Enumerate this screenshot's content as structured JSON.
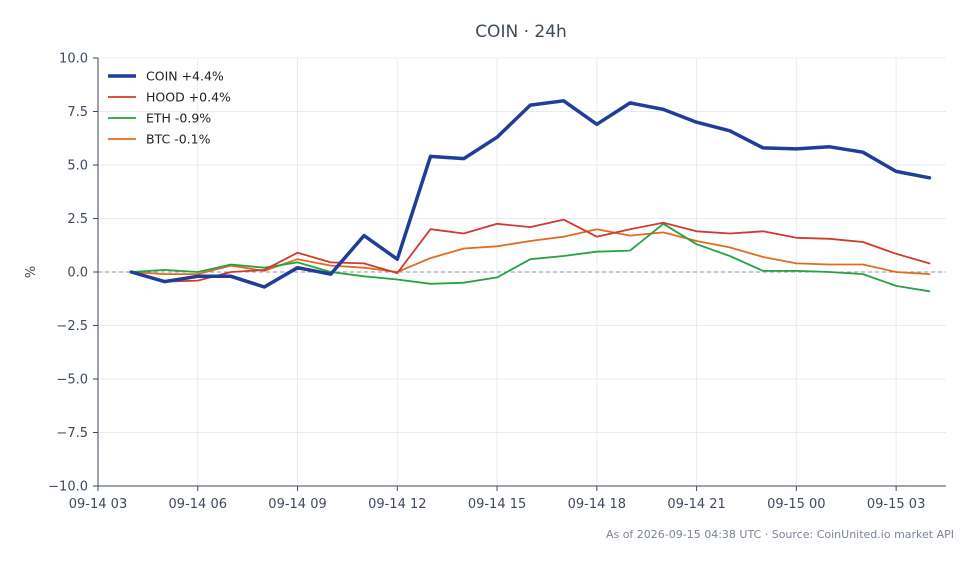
{
  "chart_data": {
    "type": "line",
    "title": "COIN · 24h",
    "xlabel": "",
    "ylabel": "%",
    "ylim": [
      -10,
      10
    ],
    "yticks": [
      10.0,
      7.5,
      5.0,
      2.5,
      0.0,
      -2.5,
      -5.0,
      -7.5,
      -10.0
    ],
    "ytick_labels": [
      "10.0",
      "7.5",
      "5.0",
      "2.5",
      "0.0",
      "−2.5",
      "−5.0",
      "−7.5",
      "−10.0"
    ],
    "xlim_hours": [
      0,
      25.5
    ],
    "xticks": [
      {
        "label": "09-14 03",
        "hour": 0
      },
      {
        "label": "09-14 06",
        "hour": 3
      },
      {
        "label": "09-14 09",
        "hour": 6
      },
      {
        "label": "09-14 12",
        "hour": 9
      },
      {
        "label": "09-14 15",
        "hour": 12
      },
      {
        "label": "09-14 18",
        "hour": 15
      },
      {
        "label": "09-14 21",
        "hour": 18
      },
      {
        "label": "09-15 00",
        "hour": 21
      },
      {
        "label": "09-15 03",
        "hour": 24
      }
    ],
    "x": [
      "09-14 04",
      "09-14 05",
      "09-14 06",
      "09-14 07",
      "09-14 08",
      "09-14 09",
      "09-14 10",
      "09-14 11",
      "09-14 12",
      "09-14 13",
      "09-14 14",
      "09-14 15",
      "09-14 16",
      "09-14 17",
      "09-14 18",
      "09-14 19",
      "09-14 20",
      "09-14 21",
      "09-14 22",
      "09-14 23",
      "09-15 00",
      "09-15 01",
      "09-15 02",
      "09-15 03",
      "09-15 04"
    ],
    "x_hours": [
      1,
      2,
      3,
      4,
      5,
      6,
      7,
      8,
      9,
      10,
      11,
      12,
      13,
      14,
      15,
      16,
      17,
      18,
      19,
      20,
      21,
      22,
      23,
      24,
      25
    ],
    "zero_line": true,
    "grid": true,
    "legend_position": "top-left",
    "series": [
      {
        "name": "COIN +4.4%",
        "color": "#1f3d99",
        "width": 3.5,
        "values": [
          0.0,
          -0.45,
          -0.2,
          -0.2,
          -0.7,
          0.2,
          -0.1,
          1.7,
          0.6,
          5.4,
          5.3,
          6.3,
          7.8,
          8.0,
          6.9,
          7.9,
          7.6,
          7.0,
          6.6,
          5.8,
          5.75,
          5.85,
          5.6,
          4.7,
          4.4
        ]
      },
      {
        "name": "HOOD +0.4%",
        "color": "#d03a2f",
        "width": 1.8,
        "values": [
          0.0,
          -0.45,
          -0.4,
          0.0,
          0.1,
          0.9,
          0.45,
          0.4,
          -0.05,
          2.0,
          1.8,
          2.25,
          2.1,
          2.45,
          1.65,
          2.0,
          2.3,
          1.9,
          1.8,
          1.9,
          1.6,
          1.55,
          1.4,
          0.85,
          0.4
        ]
      },
      {
        "name": "ETH -0.9%",
        "color": "#27a243",
        "width": 1.8,
        "values": [
          0.0,
          0.1,
          0.0,
          0.35,
          0.2,
          0.45,
          0.0,
          -0.2,
          -0.35,
          -0.55,
          -0.5,
          -0.25,
          0.6,
          0.75,
          0.95,
          1.0,
          2.25,
          1.3,
          0.75,
          0.05,
          0.05,
          0.0,
          -0.1,
          -0.65,
          -0.9
        ]
      },
      {
        "name": "BTC -0.1%",
        "color": "#e06c1f",
        "width": 1.8,
        "values": [
          0.0,
          -0.1,
          -0.1,
          0.3,
          0.05,
          0.6,
          0.3,
          0.2,
          0.0,
          0.65,
          1.1,
          1.2,
          1.45,
          1.65,
          2.0,
          1.7,
          1.85,
          1.45,
          1.15,
          0.7,
          0.4,
          0.35,
          0.35,
          0.0,
          -0.1
        ]
      }
    ],
    "footer": "As of 2026-09-15 04:38 UTC · Source: CoinUnited.io market API"
  }
}
